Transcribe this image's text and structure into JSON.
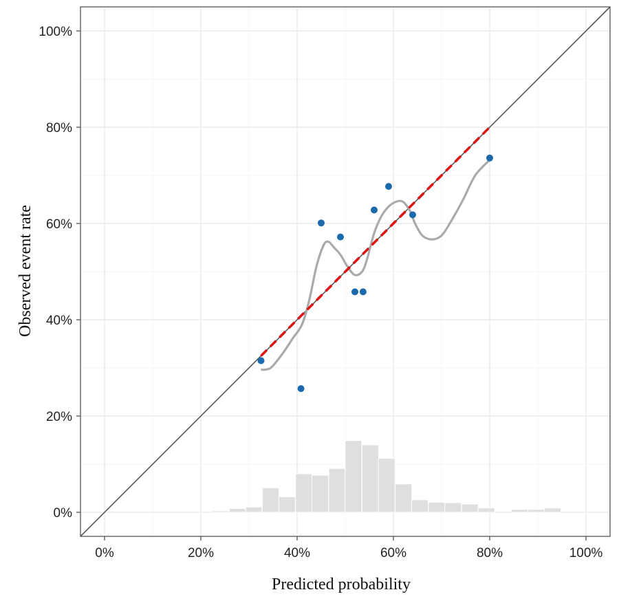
{
  "chart_data": {
    "type": "scatter",
    "xlabel": "Predicted probability",
    "ylabel": "Observed event rate",
    "xlim": [
      -0.05,
      1.05
    ],
    "ylim": [
      -0.05,
      1.05
    ],
    "x_ticks": [
      0,
      0.2,
      0.4,
      0.6,
      0.8,
      1.0
    ],
    "y_ticks": [
      0,
      0.2,
      0.4,
      0.6,
      0.8,
      1.0
    ],
    "x_tick_labels": [
      "0%",
      "20%",
      "40%",
      "60%",
      "80%",
      "100%"
    ],
    "y_tick_labels": [
      "0%",
      "20%",
      "40%",
      "60%",
      "80%",
      "100%"
    ],
    "grid": true,
    "reference_line": {
      "from": [
        -0.05,
        -0.05
      ],
      "to": [
        1.05,
        1.05
      ],
      "color": "#555555"
    },
    "calibration_line": {
      "from": [
        0.325,
        0.325
      ],
      "to": [
        0.8,
        0.8
      ],
      "color": "#dd1111",
      "style": "dashed"
    },
    "points": {
      "color": "#1a6aad",
      "x": [
        0.325,
        0.408,
        0.45,
        0.49,
        0.52,
        0.537,
        0.56,
        0.59,
        0.64,
        0.8
      ],
      "y": [
        0.315,
        0.257,
        0.601,
        0.572,
        0.458,
        0.458,
        0.628,
        0.677,
        0.618,
        0.736
      ]
    },
    "smooth_curve": {
      "color": "#aaaaaa",
      "x": [
        0.325,
        0.345,
        0.37,
        0.39,
        0.41,
        0.425,
        0.44,
        0.455,
        0.465,
        0.475,
        0.49,
        0.505,
        0.52,
        0.535,
        0.545,
        0.56,
        0.575,
        0.59,
        0.605,
        0.62,
        0.635,
        0.645,
        0.66,
        0.68,
        0.7,
        0.72,
        0.745,
        0.77,
        0.8
      ],
      "y": [
        0.296,
        0.3,
        0.33,
        0.36,
        0.39,
        0.44,
        0.51,
        0.555,
        0.562,
        0.552,
        0.535,
        0.51,
        0.493,
        0.5,
        0.525,
        0.58,
        0.615,
        0.635,
        0.645,
        0.645,
        0.625,
        0.6,
        0.575,
        0.567,
        0.575,
        0.605,
        0.65,
        0.7,
        0.732
      ]
    },
    "histogram": {
      "color": "#e0dfe0",
      "bin_width": 0.0345,
      "bin_centers": [
        0.241,
        0.276,
        0.31,
        0.345,
        0.379,
        0.414,
        0.448,
        0.483,
        0.517,
        0.552,
        0.586,
        0.621,
        0.655,
        0.69,
        0.724,
        0.759,
        0.793,
        0.862,
        0.897,
        0.931
      ],
      "heights": [
        0.003,
        0.008,
        0.011,
        0.051,
        0.032,
        0.08,
        0.077,
        0.091,
        0.149,
        0.14,
        0.112,
        0.059,
        0.026,
        0.021,
        0.02,
        0.017,
        0.009,
        0.006,
        0.006,
        0.009
      ]
    }
  }
}
